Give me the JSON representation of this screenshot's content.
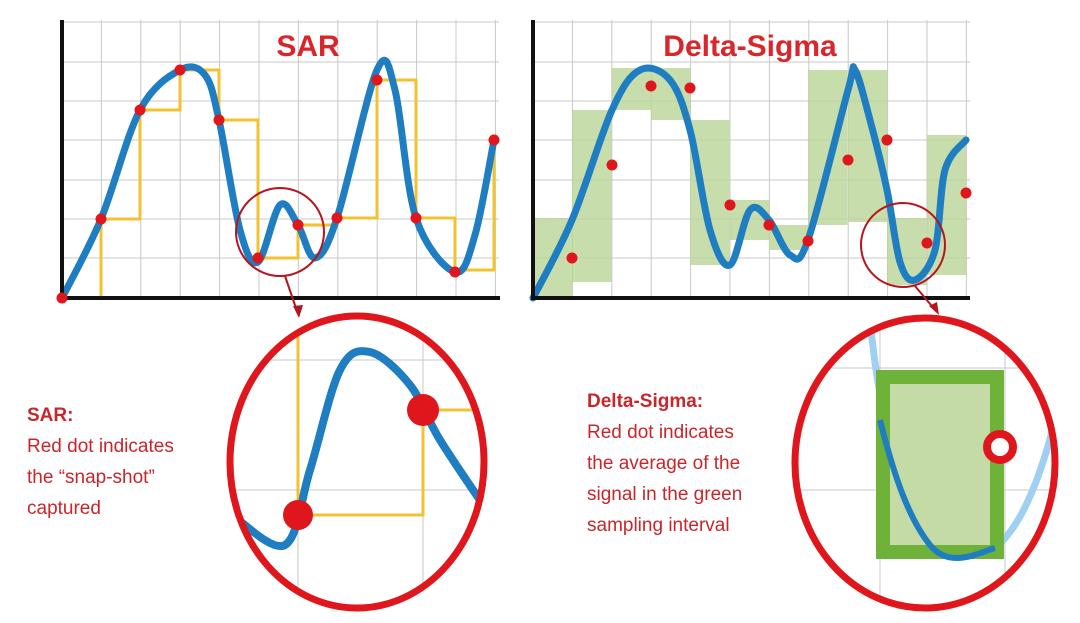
{
  "titles": {
    "left": "SAR",
    "right": "Delta-Sigma"
  },
  "captions": {
    "left": {
      "heading": "SAR:",
      "lines": [
        "Red dot indicates",
        "the “snap-shot”",
        "captured"
      ]
    },
    "right": {
      "heading": "Delta-Sigma:",
      "lines": [
        "Red dot indicates",
        "the average of the",
        "signal in the green",
        "sampling interval"
      ]
    }
  }
}
